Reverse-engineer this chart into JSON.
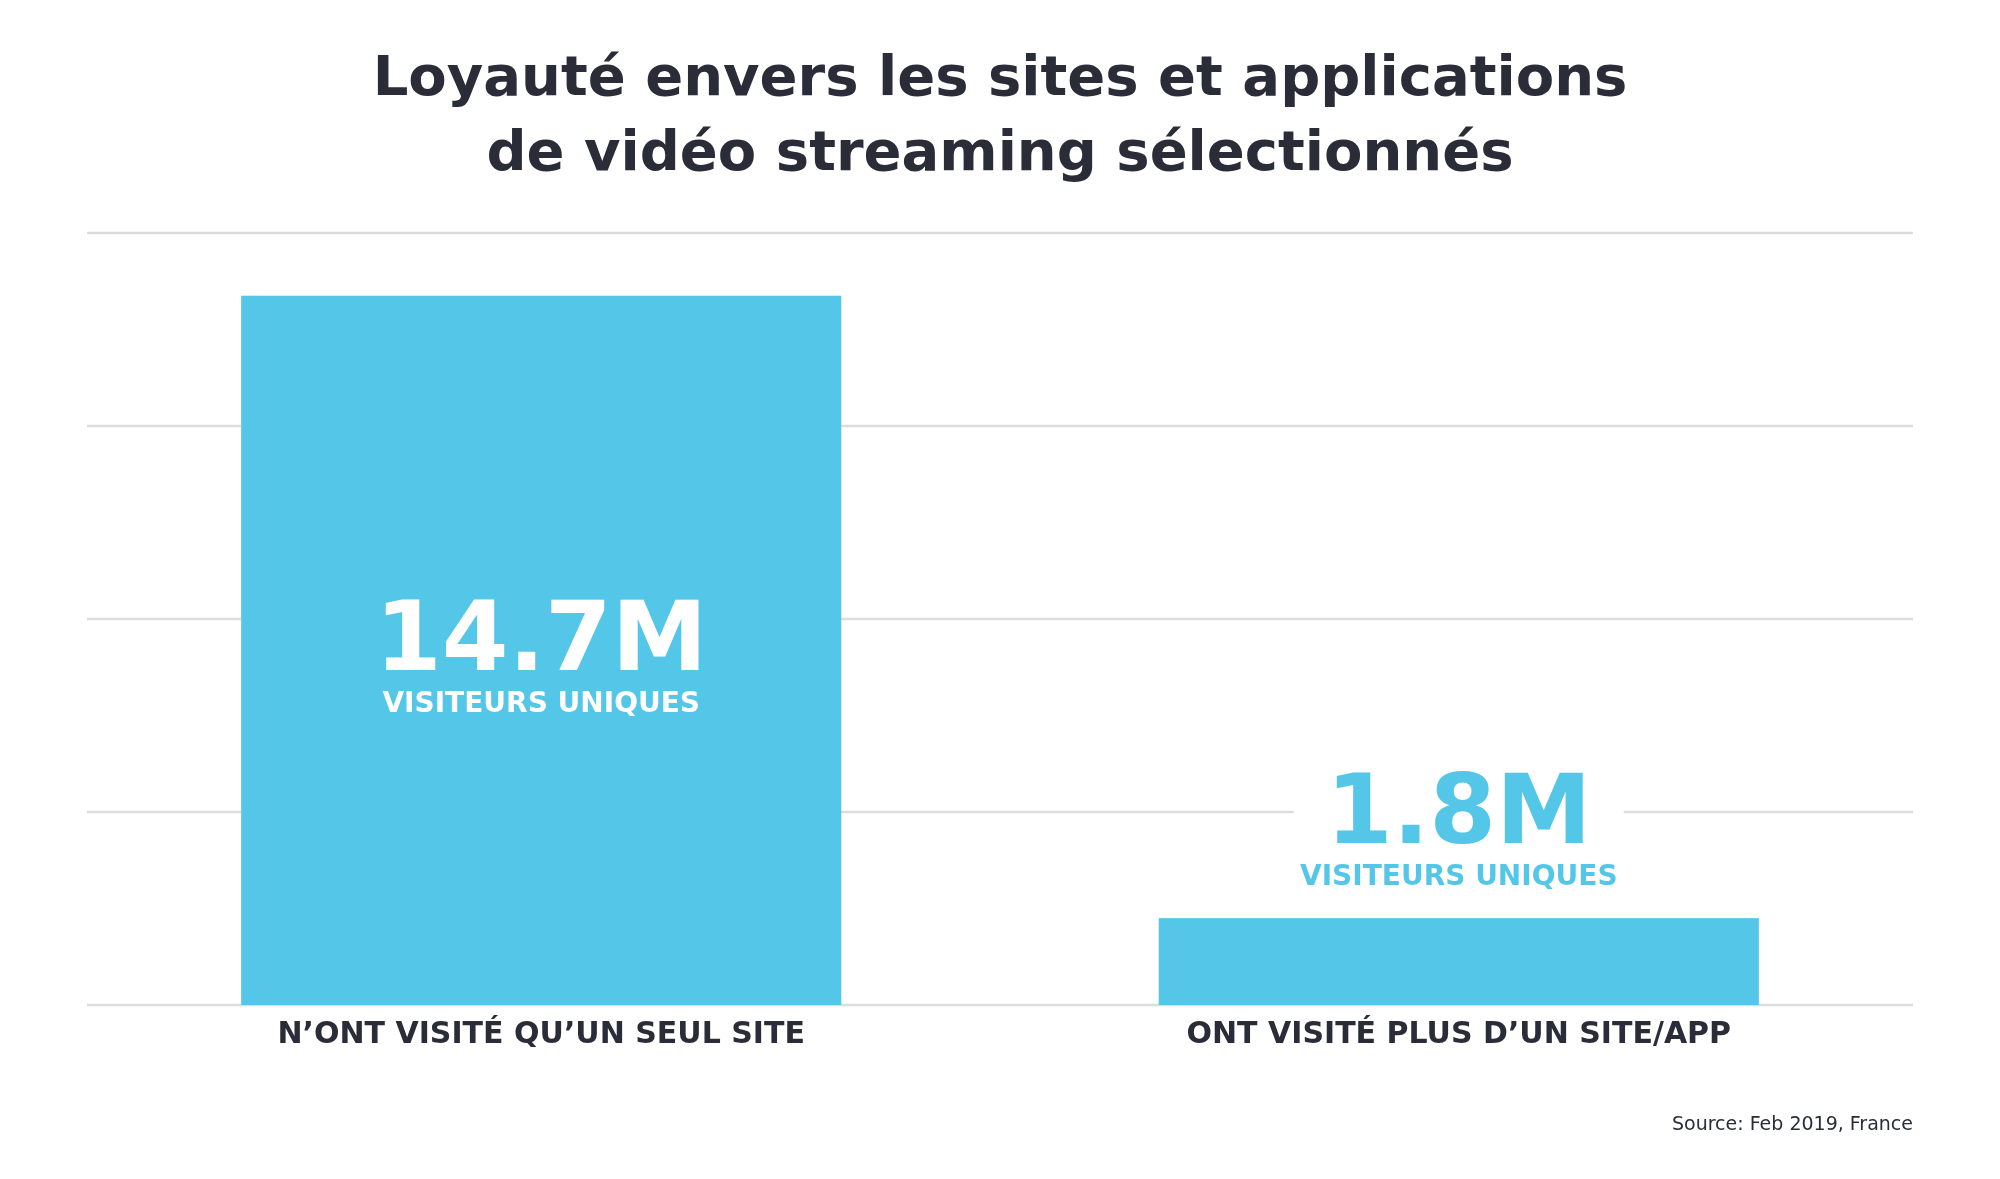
{
  "chart_data": {
    "type": "bar",
    "title": "Loyauté envers les sites et applications\nde vidéo streaming sélectionnés",
    "categories": [
      "N’ONT VISITÉ QU’UN SEUL SITE",
      "ONT VISITÉ PLUS D’UN SITE/APP"
    ],
    "values": [
      14.7,
      1.8
    ],
    "color": "#54c6e8",
    "value_labels": [
      "14.7M",
      "1.8M"
    ],
    "ylim": [
      0,
      16
    ],
    "yticks": [
      {
        "value": 0,
        "label": null
      },
      {
        "value": 4,
        "label": null
      },
      {
        "value": 8,
        "label": null
      },
      {
        "value": 12,
        "label": null
      },
      {
        "value": 16,
        "label": null
      }
    ],
    "grid": "y",
    "annotations": [
      "VISITEURS UNIQUES",
      "VISITEURS UNIQUES",
      "Source: Feb 2019, France"
    ]
  }
}
